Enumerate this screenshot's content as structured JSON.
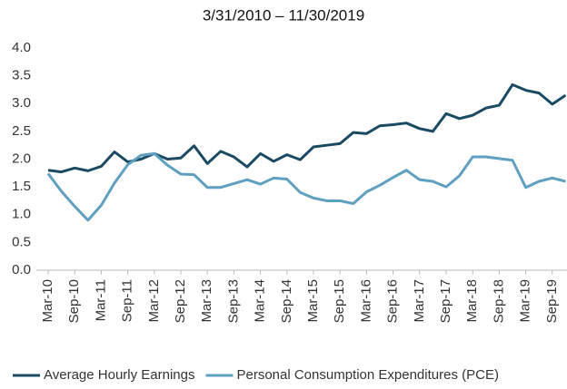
{
  "chart_data": {
    "type": "line",
    "title": "3/31/2010 – 11/30/2019",
    "categories": [
      "Mar-10",
      null,
      "Sep-10",
      null,
      "Mar-11",
      null,
      "Sep-11",
      null,
      "Mar-12",
      null,
      "Sep-12",
      null,
      "Mar-13",
      null,
      "Sep-13",
      null,
      "Mar-14",
      null,
      "Sep-14",
      null,
      "Mar-15",
      null,
      "Sep-15",
      null,
      "Mar-16",
      null,
      "Sep-16",
      null,
      "Mar-17",
      null,
      "Sep-17",
      null,
      "Mar-18",
      null,
      "Sep-18",
      null,
      "Mar-19",
      null,
      "Sep-19",
      null
    ],
    "series": [
      {
        "name": "Average Hourly Earnings",
        "color": "#1b4a63",
        "values": [
          1.8,
          1.77,
          1.84,
          1.79,
          1.87,
          2.13,
          1.95,
          2.0,
          2.1,
          2.0,
          2.02,
          2.24,
          1.92,
          2.14,
          2.04,
          1.86,
          2.1,
          1.96,
          2.08,
          1.99,
          2.22,
          2.25,
          2.28,
          2.48,
          2.46,
          2.6,
          2.62,
          2.65,
          2.55,
          2.5,
          2.82,
          2.73,
          2.79,
          2.92,
          2.97,
          3.34,
          3.24,
          3.19,
          2.99,
          3.15
        ]
      },
      {
        "name": "Personal Consumption Expenditures (PCE)",
        "color": "#5f9fbf",
        "values": [
          1.74,
          1.42,
          1.15,
          0.9,
          1.17,
          1.57,
          1.9,
          2.07,
          2.1,
          1.89,
          1.73,
          1.72,
          1.49,
          1.49,
          1.56,
          1.63,
          1.55,
          1.66,
          1.64,
          1.4,
          1.3,
          1.25,
          1.25,
          1.2,
          1.41,
          1.53,
          1.67,
          1.8,
          1.63,
          1.6,
          1.5,
          1.7,
          2.04,
          2.04,
          2.01,
          1.98,
          1.49,
          1.6,
          1.66,
          1.6
        ]
      }
    ],
    "ylim": [
      0,
      4
    ],
    "yticks": [
      {
        "value": 0,
        "label": "0.0"
      },
      0.5,
      {
        "value": 1,
        "label": "1.0"
      },
      1.5,
      {
        "value": 2,
        "label": "2.0"
      },
      2.5,
      {
        "value": 3,
        "label": "3.0"
      },
      3.5,
      {
        "value": 4,
        "label": "4.0"
      }
    ],
    "grid": false,
    "legend": "bottom"
  }
}
